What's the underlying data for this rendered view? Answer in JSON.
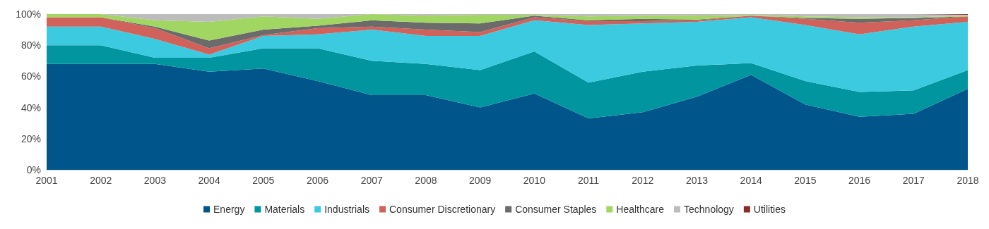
{
  "chart_data": {
    "type": "area",
    "stacked": true,
    "categories": [
      "2001",
      "2002",
      "2003",
      "2004",
      "2005",
      "2006",
      "2007",
      "2008",
      "2009",
      "2010",
      "2011",
      "2012",
      "2013",
      "2014",
      "2015",
      "2016",
      "2017",
      "2018"
    ],
    "series": [
      {
        "name": "Energy",
        "color": "#00558a",
        "values": [
          68,
          68,
          68,
          63,
          65,
          57,
          48,
          48,
          40,
          49,
          33,
          37,
          47,
          61,
          42,
          34,
          36,
          52
        ]
      },
      {
        "name": "Materials",
        "color": "#00959f",
        "values": [
          12,
          12,
          4,
          9,
          13,
          21,
          22,
          20,
          24,
          27,
          23,
          26,
          20,
          7.5,
          15,
          16,
          15,
          12
        ]
      },
      {
        "name": "Industrials",
        "color": "#3bcadf",
        "values": [
          12,
          12,
          12,
          2,
          8,
          9,
          20,
          18,
          22,
          20,
          37,
          31,
          28,
          29.5,
          36,
          37,
          41,
          31
        ]
      },
      {
        "name": "Consumer Discretionary",
        "color": "#d1625b",
        "values": [
          6,
          6,
          7,
          4,
          0.5,
          4,
          2,
          4,
          2.5,
          2,
          2.5,
          1.5,
          1,
          1,
          4,
          7.5,
          4,
          3.5
        ]
      },
      {
        "name": "Consumer Staples",
        "color": "#6b6b6b",
        "values": [
          0,
          0,
          1,
          5,
          3.5,
          1.5,
          4,
          4.5,
          5.5,
          1,
          0.5,
          1.5,
          0.5,
          0,
          0.5,
          2.5,
          1.5,
          0
        ]
      },
      {
        "name": "Healthcare",
        "color": "#a2d662",
        "values": [
          2,
          2,
          4,
          12,
          8.5,
          4.5,
          4,
          4.5,
          5.5,
          0.5,
          2.5,
          2,
          2.5,
          0.5,
          1,
          1,
          0.5,
          0.5
        ]
      },
      {
        "name": "Technology",
        "color": "#bcbcbc",
        "values": [
          0,
          0,
          4,
          5,
          1.5,
          3,
          0,
          1,
          0.5,
          0.5,
          1.5,
          1,
          1,
          0.5,
          1.5,
          2,
          2,
          0.5
        ]
      },
      {
        "name": "Utilities",
        "color": "#8b2a2a",
        "values": [
          0,
          0,
          0,
          0,
          0,
          0,
          0,
          0,
          0,
          0,
          0,
          0,
          0,
          0,
          0,
          0,
          0,
          0.5
        ]
      }
    ],
    "ylim": [
      0,
      100
    ],
    "yticks": [
      {
        "value": 0,
        "label": "0%"
      },
      {
        "value": 20,
        "label": "20%"
      },
      {
        "value": 40,
        "label": "40%"
      },
      {
        "value": 60,
        "label": "60%"
      },
      {
        "value": 80,
        "label": "80%"
      },
      {
        "value": 100,
        "label": "100%"
      }
    ],
    "grid": false,
    "legend": "bottom"
  }
}
